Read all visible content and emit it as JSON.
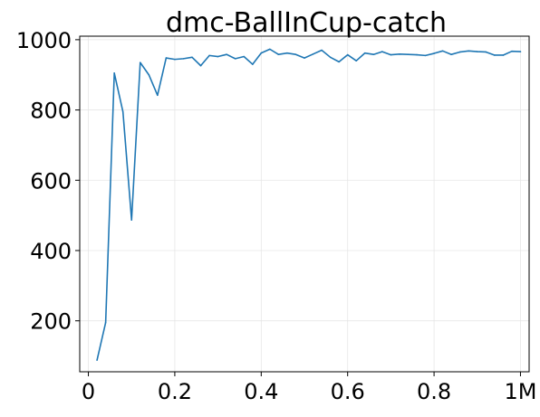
{
  "chart_data": {
    "type": "line",
    "title": "dmc-BallInCup-catch",
    "xlabel": "",
    "ylabel": "",
    "xlim": [
      -0.02,
      1.02
    ],
    "ylim": [
      55,
      1010
    ],
    "grid": true,
    "x_ticks": [
      {
        "value": 0,
        "label": "0"
      },
      {
        "value": 0.2,
        "label": "0.2"
      },
      {
        "value": 0.4,
        "label": "0.4"
      },
      {
        "value": 0.6,
        "label": "0.6"
      },
      {
        "value": 0.8,
        "label": "0.8"
      },
      {
        "value": 1.0,
        "label": "1M"
      }
    ],
    "y_ticks": [
      {
        "value": 200,
        "label": "200"
      },
      {
        "value": 400,
        "label": "400"
      },
      {
        "value": 600,
        "label": "600"
      },
      {
        "value": 800,
        "label": "800"
      },
      {
        "value": 1000,
        "label": "1000"
      }
    ],
    "series": [
      {
        "color": "#1f77b4",
        "x": [
          0.02,
          0.04,
          0.06,
          0.08,
          0.1,
          0.12,
          0.14,
          0.16,
          0.18,
          0.2,
          0.22,
          0.24,
          0.26,
          0.28,
          0.3,
          0.32,
          0.34,
          0.36,
          0.38,
          0.4,
          0.42,
          0.44,
          0.46,
          0.48,
          0.5,
          0.52,
          0.54,
          0.56,
          0.58,
          0.6,
          0.62,
          0.64,
          0.66,
          0.68,
          0.7,
          0.72,
          0.74,
          0.76,
          0.78,
          0.8,
          0.82,
          0.84,
          0.86,
          0.88,
          0.9,
          0.92,
          0.94,
          0.96,
          0.98,
          1.0
        ],
        "y": [
          88,
          195,
          905,
          795,
          487,
          935,
          900,
          842,
          948,
          944,
          946,
          950,
          926,
          955,
          952,
          958,
          946,
          952,
          930,
          962,
          973,
          958,
          962,
          958,
          948,
          959,
          970,
          950,
          937,
          957,
          940,
          962,
          958,
          966,
          957,
          959,
          958,
          957,
          955,
          961,
          968,
          958,
          965,
          968,
          966,
          965,
          956,
          956,
          967,
          966
        ]
      }
    ]
  }
}
